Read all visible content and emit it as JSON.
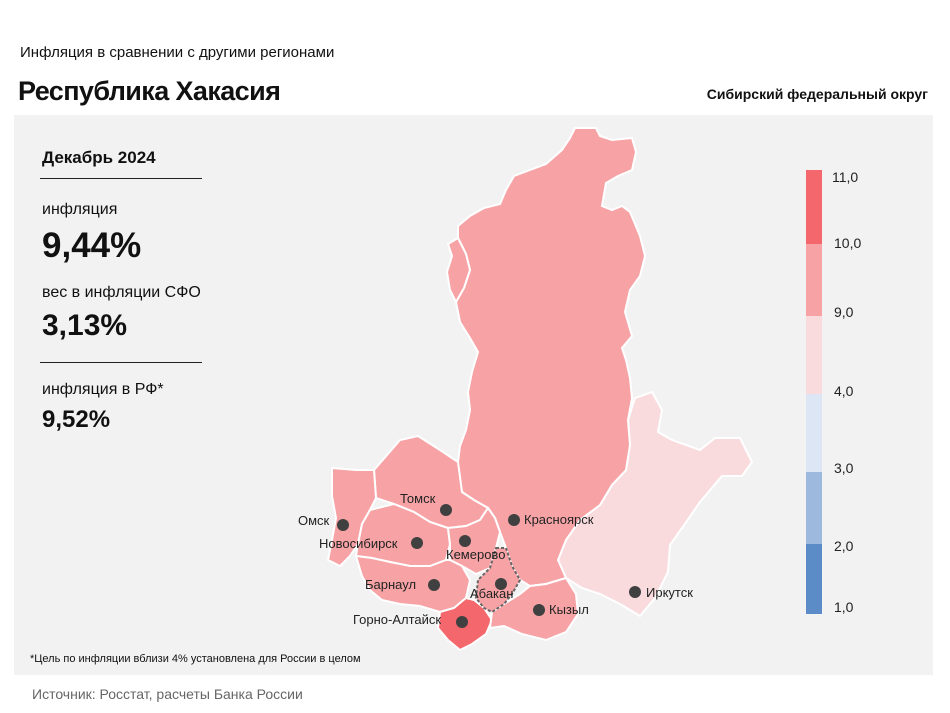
{
  "header": {
    "supertitle": "Инфляция в сравнении с другими регионами",
    "title": "Республика Хакасия",
    "district": "Сибирский федеральный округ"
  },
  "stats": {
    "period": "Декабрь 2024",
    "inflation_label": "инфляция",
    "inflation_value": "9,44%",
    "weight_label": "вес в инфляции СФО",
    "weight_value": "3,13%",
    "rf_label": "инфляция в РФ*",
    "rf_value": "9,52%"
  },
  "legend": {
    "ticks": [
      "11,0",
      "10,0",
      "9,0",
      "4,0",
      "3,0",
      "2,0",
      "1,0"
    ],
    "colors": [
      "#f4686d",
      "#f7a3a6",
      "#f9dbde",
      "#dde6f4",
      "#9db9dd",
      "#5b8cc8"
    ]
  },
  "map": {
    "cities": [
      "Томск",
      "Омск",
      "Красноярск",
      "Новосибирск",
      "Кемерово",
      "Барнаул",
      "Абакан",
      "Кызыл",
      "Иркутск",
      "Горно-Алтайск"
    ],
    "colors": {
      "krasnoyarsk": "#f7a3a6",
      "irkutsk": "#f9dbde",
      "altai_rep": "#f4686d",
      "khakassia_outline": "#666666",
      "others": "#f7a3a6"
    }
  },
  "footnote": "*Цель по инфляции вблизи 4% установлена для России в целом",
  "source": "Источник: Росстат, расчеты Банка России"
}
